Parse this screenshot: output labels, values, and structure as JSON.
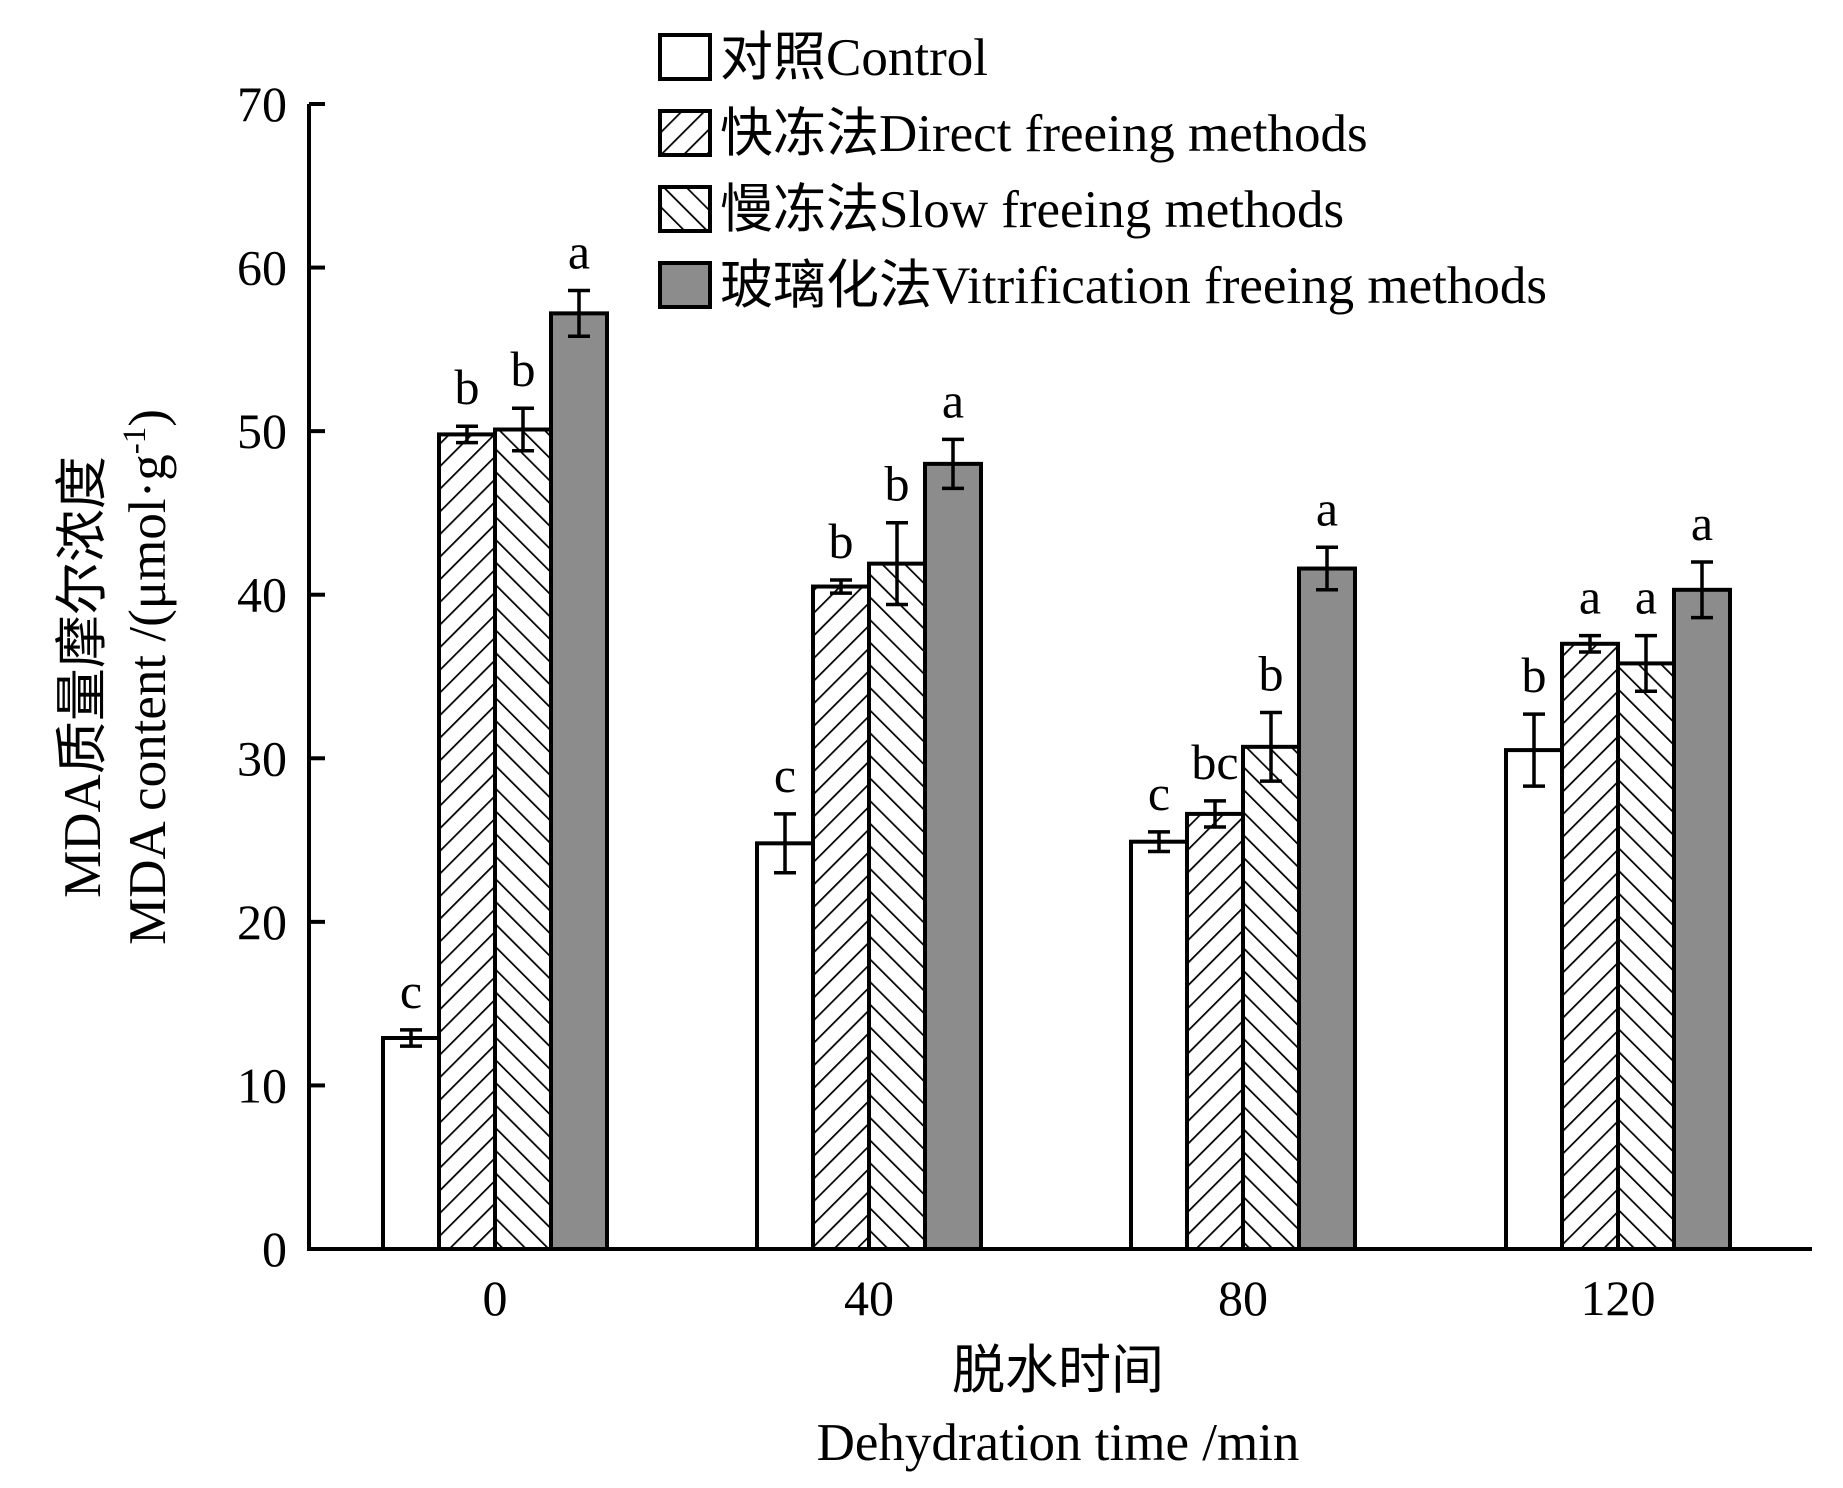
{
  "chart_data": {
    "type": "bar",
    "categories": [
      "0",
      "40",
      "80",
      "120"
    ],
    "ylim": [
      0,
      70
    ],
    "yticks": [
      0,
      10,
      20,
      30,
      40,
      50,
      60,
      70
    ],
    "xlabel_line1": "脱水时间",
    "xlabel_line2": "Dehydration time /min",
    "ylabel_line1": "MDA质量摩尔浓度",
    "ylabel_line2": "MDA content /(μmol·g",
    "ylabel_sup": "-1",
    "ylabel_close": ")",
    "grid": false,
    "legend_position": "top-right",
    "series": [
      {
        "name": "对照Control",
        "fill": "white",
        "values": [
          12.9,
          24.8,
          24.9,
          30.5
        ],
        "errors": [
          0.5,
          1.8,
          0.6,
          2.2
        ],
        "labels": [
          "c",
          "c",
          "c",
          "b"
        ]
      },
      {
        "name": "快冻法Direct freeing methods",
        "fill": "hatch-forward",
        "values": [
          49.8,
          40.5,
          26.6,
          37.0
        ],
        "errors": [
          0.5,
          0.4,
          0.8,
          0.5
        ],
        "labels": [
          "b",
          "b",
          "bc",
          "a"
        ]
      },
      {
        "name": "慢冻法Slow freeing methods",
        "fill": "hatch-back",
        "values": [
          50.1,
          41.9,
          30.7,
          35.8
        ],
        "errors": [
          1.3,
          2.5,
          2.1,
          1.7
        ],
        "labels": [
          "b",
          "b",
          "b",
          "a"
        ]
      },
      {
        "name": "玻璃化法Vitrification freeing methods",
        "fill": "gray",
        "values": [
          57.2,
          48.0,
          41.6,
          40.3
        ],
        "errors": [
          1.4,
          1.5,
          1.3,
          1.7
        ],
        "labels": [
          "a",
          "a",
          "a",
          "a"
        ]
      }
    ],
    "colors": {
      "gray": "#8c8c8c",
      "outline": "#000000",
      "white": "#ffffff"
    }
  }
}
